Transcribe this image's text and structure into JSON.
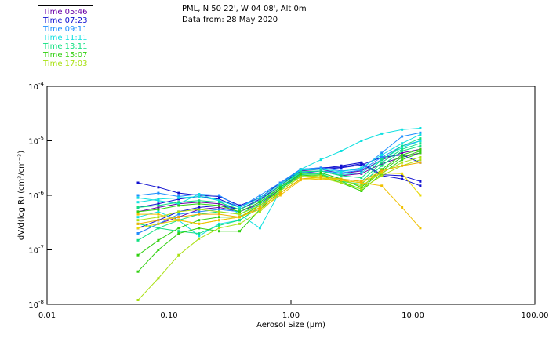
{
  "header": {
    "station": "PML, N 50 22', W 04 08', Alt 0m",
    "date": "Data from: 28 May 2020"
  },
  "legend": [
    {
      "label": "Time 05:46",
      "color": "#6a00a8"
    },
    {
      "label": "Time 07:23",
      "color": "#1010d0"
    },
    {
      "label": "Time 09:11",
      "color": "#1e90ff"
    },
    {
      "label": "Time 11:11",
      "color": "#10e0e0"
    },
    {
      "label": "Time 13:11",
      "color": "#10e080"
    },
    {
      "label": "Time 15:07",
      "color": "#30d010"
    },
    {
      "label": "Time 17:03",
      "color": "#a8e010"
    }
  ],
  "chart_data": {
    "type": "line",
    "title": "",
    "xlabel": "Aerosol Size (µm)",
    "ylabel": "dV/d(log R) (cm³/cm⁻³)",
    "xscale": "log",
    "yscale": "log",
    "xlim": [
      0.01,
      100
    ],
    "ylim": [
      1e-08,
      0.0001
    ],
    "x_ticks": [
      0.01,
      0.1,
      1,
      10,
      100
    ],
    "x_tick_labels": [
      "0.01",
      "0.10",
      "1.00",
      "10.00",
      "100.00"
    ],
    "y_ticks": [
      0.0001,
      1e-05,
      1e-06,
      1e-07,
      1e-08
    ],
    "y_tick_labels": [
      {
        "base": "10",
        "exp": "-4"
      },
      {
        "base": "10",
        "exp": "-5"
      },
      {
        "base": "10",
        "exp": "-6"
      },
      {
        "base": "10",
        "exp": "-7"
      },
      {
        "base": "10",
        "exp": "-8"
      }
    ],
    "grid": false,
    "legend_position": "top-left (outside)",
    "x": [
      0.0557,
      0.0817,
      0.12,
      0.176,
      0.258,
      0.379,
      0.556,
      0.816,
      1.2,
      1.76,
      2.58,
      3.78,
      5.55,
      8.14,
      11.5
    ],
    "series": [
      {
        "name": "05:46 a",
        "color": "#6a00a8",
        "values": [
          2e-07,
          3e-07,
          4e-07,
          5.5e-07,
          6e-07,
          5e-07,
          7e-07,
          1.3e-06,
          2.5e-06,
          2.8e-06,
          2.3e-06,
          2.5e-06,
          3.8e-06,
          5e-06,
          6e-06
        ]
      },
      {
        "name": "05:46 b",
        "color": "#6a00a8",
        "values": [
          5e-07,
          6e-07,
          7e-07,
          7.5e-07,
          7e-07,
          5.5e-07,
          8e-07,
          1.5e-06,
          2.8e-06,
          3e-06,
          2.5e-06,
          2.8e-06,
          4.5e-06,
          6e-06,
          7e-06
        ]
      },
      {
        "name": "07:23 a",
        "color": "#1010d0",
        "values": [
          1.7e-06,
          1.4e-06,
          1.1e-06,
          1e-06,
          9.5e-07,
          6.5e-07,
          9e-07,
          1.7e-06,
          3e-06,
          3.2e-06,
          3.3e-06,
          3.8e-06,
          2.3e-06,
          2e-06,
          1.5e-06
        ]
      },
      {
        "name": "07:23 b",
        "color": "#1010d0",
        "values": [
          6e-07,
          7e-07,
          8.5e-07,
          9.5e-07,
          8.5e-07,
          6e-07,
          9e-07,
          1.6e-06,
          3e-06,
          3.1e-06,
          3.5e-06,
          4e-06,
          2.4e-06,
          2.3e-06,
          1.8e-06
        ]
      },
      {
        "name": "07:23 c",
        "color": "#1010d0",
        "values": [
          2.5e-07,
          3.5e-07,
          5e-07,
          6e-07,
          6.5e-07,
          5.5e-07,
          8.5e-07,
          1.5e-06,
          2.9e-06,
          3e-06,
          3.2e-06,
          3.6e-06,
          5e-06,
          5.5e-06,
          4e-06
        ]
      },
      {
        "name": "09:11 a",
        "color": "#1e90ff",
        "values": [
          1e-06,
          1.1e-06,
          9.5e-07,
          1.05e-06,
          1e-06,
          6e-07,
          1e-06,
          1.7e-06,
          3e-06,
          3.2e-06,
          2.8e-06,
          3e-06,
          6e-06,
          1.2e-05,
          1.4e-05
        ]
      },
      {
        "name": "09:11 b",
        "color": "#1e90ff",
        "values": [
          2e-07,
          3e-07,
          4.5e-07,
          5e-07,
          5.5e-07,
          5e-07,
          7.5e-07,
          1.4e-06,
          2.6e-06,
          2.8e-06,
          2.6e-06,
          2.9e-06,
          5e-06,
          8e-06,
          1e-05
        ]
      },
      {
        "name": "11:11 a",
        "color": "#10e0e0",
        "values": [
          9e-07,
          8e-07,
          7e-07,
          1.05e-06,
          8e-07,
          4.5e-07,
          2.5e-07,
          1.2e-06,
          3e-06,
          4.5e-06,
          6.5e-06,
          1e-05,
          1.35e-05,
          1.6e-05,
          1.7e-05
        ]
      },
      {
        "name": "11:11 b",
        "color": "#10e0e0",
        "values": [
          7.5e-07,
          8.5e-07,
          9e-07,
          9.5e-07,
          8e-07,
          6e-07,
          9e-07,
          1.6e-06,
          2.9e-06,
          3e-06,
          2.7e-06,
          3.2e-06,
          5.5e-06,
          9e-06,
          1.3e-05
        ]
      },
      {
        "name": "11:11 c",
        "color": "#10e0e0",
        "values": [
          4e-07,
          5e-07,
          3.5e-07,
          1.8e-07,
          3e-07,
          3.5e-07,
          6e-07,
          1.3e-06,
          2.7e-06,
          2.8e-06,
          2.4e-06,
          2.6e-06,
          4.5e-06,
          7.5e-06,
          1e-05
        ]
      },
      {
        "name": "13:11 a",
        "color": "#10e080",
        "values": [
          6e-07,
          6.5e-07,
          7.5e-07,
          8e-07,
          7.5e-07,
          5.5e-07,
          8e-07,
          1.5e-06,
          2.7e-06,
          2.8e-06,
          2.3e-06,
          2.1e-06,
          4.5e-06,
          8e-06,
          1.1e-05
        ]
      },
      {
        "name": "13:11 b",
        "color": "#10e080",
        "values": [
          1.5e-07,
          2.5e-07,
          3.5e-07,
          4.5e-07,
          5e-07,
          4.5e-07,
          7e-07,
          1.4e-06,
          2.5e-06,
          2.6e-06,
          2e-06,
          1.8e-06,
          4e-06,
          7e-06,
          9e-06
        ]
      },
      {
        "name": "13:11 c",
        "color": "#10e080",
        "values": [
          3e-07,
          2.5e-07,
          2.2e-07,
          2e-07,
          2.8e-07,
          3.5e-07,
          6e-07,
          1.3e-06,
          2.4e-06,
          2.5e-06,
          1.8e-06,
          1.6e-06,
          3.5e-06,
          6.5e-06,
          8e-06
        ]
      },
      {
        "name": "15:07 a",
        "color": "#30d010",
        "values": [
          5e-07,
          5.5e-07,
          6.5e-07,
          7e-07,
          6.5e-07,
          5e-07,
          7.5e-07,
          1.4e-06,
          2.5e-06,
          2.6e-06,
          2e-06,
          1.4e-06,
          3e-06,
          5.5e-06,
          7e-06
        ]
      },
      {
        "name": "15:07 b",
        "color": "#30d010",
        "values": [
          8e-08,
          1.5e-07,
          2.5e-07,
          3.5e-07,
          4e-07,
          4e-07,
          6.5e-07,
          1.3e-06,
          2.3e-06,
          2.4e-06,
          1.8e-06,
          1.3e-06,
          2.8e-06,
          5e-06,
          6.5e-06
        ]
      },
      {
        "name": "15:07 c",
        "color": "#30d010",
        "values": [
          4e-08,
          1e-07,
          2e-07,
          2.5e-07,
          2.2e-07,
          2.2e-07,
          5.5e-07,
          1.2e-06,
          2.2e-06,
          2.3e-06,
          1.7e-06,
          1.2e-06,
          2.5e-06,
          4.5e-06,
          6e-06
        ]
      },
      {
        "name": "17:03 a",
        "color": "#a8e010",
        "values": [
          3.5e-07,
          4e-07,
          5e-07,
          5.5e-07,
          5e-07,
          4.5e-07,
          6.5e-07,
          1.2e-06,
          2.2e-06,
          2.3e-06,
          1.9e-06,
          1.5e-06,
          2.6e-06,
          4e-06,
          5e-06
        ]
      },
      {
        "name": "17:03 b",
        "color": "#a8e010",
        "values": [
          1.2e-08,
          3e-08,
          8e-08,
          1.6e-07,
          2.5e-07,
          3e-07,
          5e-07,
          1.1e-06,
          2e-06,
          2.1e-06,
          1.7e-06,
          1.3e-06,
          2.3e-06,
          3.5e-06,
          4.5e-06
        ]
      },
      {
        "name": "17:03 c",
        "color": "#e8d800",
        "values": [
          2.5e-07,
          3e-07,
          3.5e-07,
          3e-07,
          3.5e-07,
          4e-07,
          6e-07,
          1.1e-06,
          2e-06,
          2.1e-06,
          1.9e-06,
          1.7e-06,
          2.6e-06,
          2.5e-06,
          1e-06
        ]
      },
      {
        "name": "17:03 d",
        "color": "#f0c000",
        "values": [
          4.5e-07,
          4.5e-07,
          3.5e-07,
          3e-07,
          3.5e-07,
          4e-07,
          5.5e-07,
          1e-06,
          1.9e-06,
          2e-06,
          1.9e-06,
          1.7e-06,
          1.5e-06,
          6e-07,
          2.5e-07
        ]
      },
      {
        "name": "17:03 e",
        "color": "#f0b000",
        "values": [
          3e-07,
          3.5e-07,
          4e-07,
          4.5e-07,
          4.5e-07,
          4e-07,
          6e-07,
          1.1e-06,
          2e-06,
          2.2e-06,
          2e-06,
          1.8e-06,
          2.8e-06,
          3.5e-06,
          4e-06
        ]
      }
    ]
  }
}
